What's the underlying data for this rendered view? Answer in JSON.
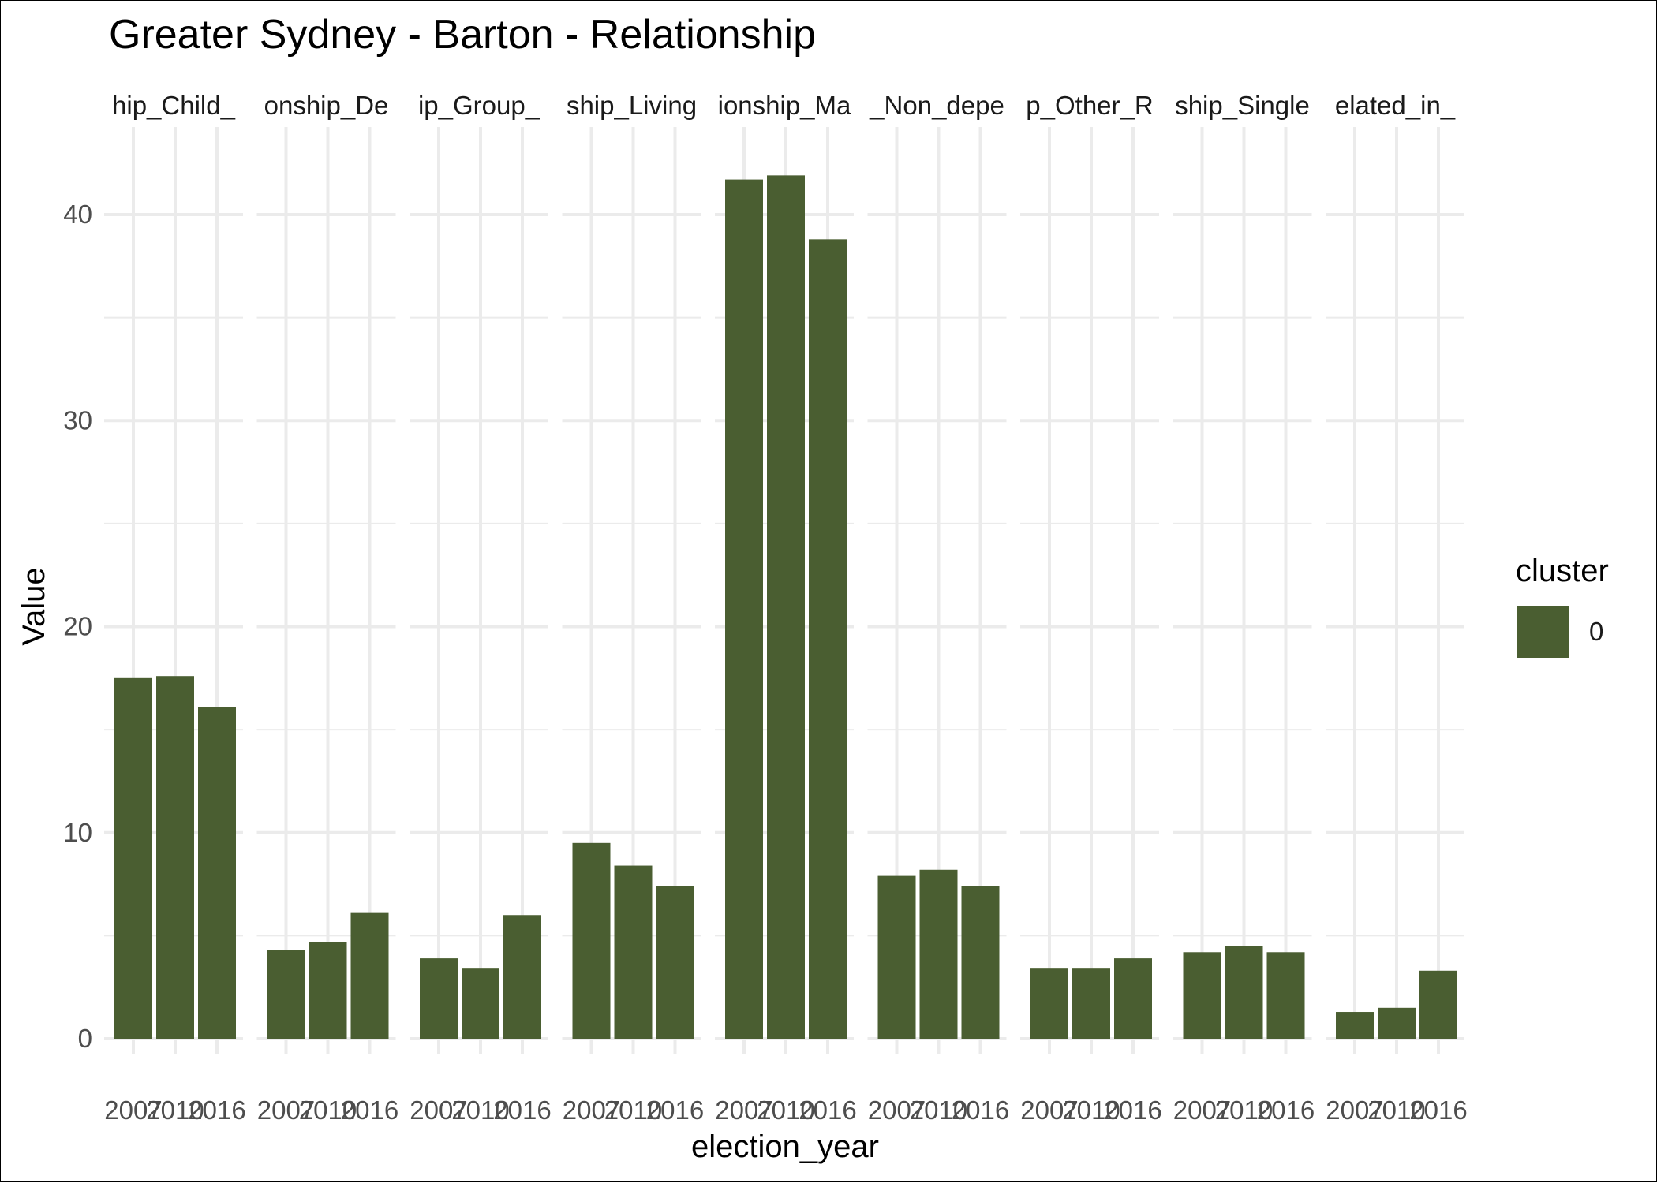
{
  "chart_data": {
    "type": "bar",
    "title": "Greater Sydney - Barton - Relationship",
    "xlabel": "election_year",
    "ylabel": "Value",
    "ylim": [
      0,
      44
    ],
    "y_ticks": [
      0,
      10,
      20,
      30,
      40
    ],
    "categories": [
      "2007",
      "2010",
      "2016"
    ],
    "category_tick_labels": [
      "2007",
      "2010",
      "2016"
    ],
    "grid": true,
    "bar_color": "#4a5e31",
    "grid_color": "#ebebeb",
    "legend": {
      "title": "cluster",
      "position": "right",
      "entries": [
        {
          "label": "0",
          "color": "#4a5e31"
        }
      ]
    },
    "facets": [
      {
        "strip_label": "hip_Child_",
        "values": [
          17.5,
          17.6,
          16.1
        ]
      },
      {
        "strip_label": "onship_De",
        "values": [
          4.3,
          4.7,
          6.1
        ]
      },
      {
        "strip_label": "ip_Group_",
        "values": [
          3.9,
          3.4,
          6.0
        ]
      },
      {
        "strip_label": "ship_Living",
        "values": [
          9.5,
          8.4,
          7.4
        ]
      },
      {
        "strip_label": "ionship_Ma",
        "values": [
          41.7,
          41.9,
          38.8
        ]
      },
      {
        "strip_label": "_Non_depe",
        "values": [
          7.9,
          8.2,
          7.4
        ]
      },
      {
        "strip_label": "p_Other_R",
        "values": [
          3.4,
          3.4,
          3.9
        ]
      },
      {
        "strip_label": "ship_Single",
        "values": [
          4.2,
          4.5,
          4.2
        ]
      },
      {
        "strip_label": "elated_in_",
        "values": [
          1.3,
          1.5,
          3.3
        ]
      }
    ]
  }
}
